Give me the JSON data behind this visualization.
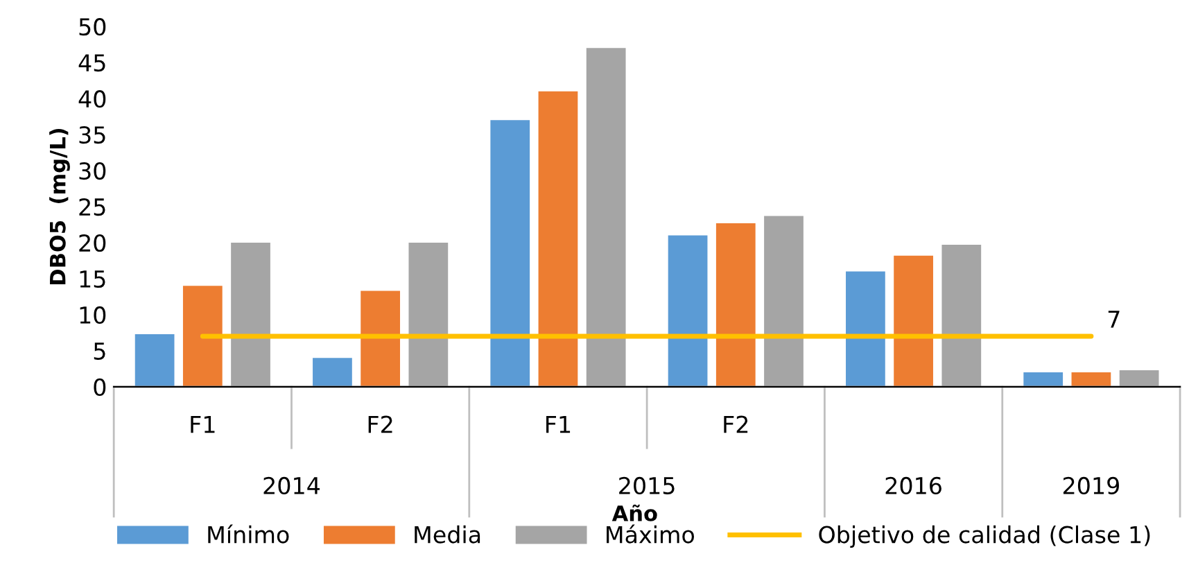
{
  "chart_data": {
    "type": "bar",
    "ylabel": "DBO5  (mg/L)",
    "xlabel": "Año",
    "categories": [
      "F1",
      "F2",
      "F1",
      "F2",
      null,
      null
    ],
    "annotations": [
      "2014",
      "2015",
      "2016",
      "2019"
    ],
    "series": [
      {
        "name": "Mínimo",
        "color": "#5b9bd5",
        "values": [
          7.3,
          4,
          37,
          21,
          16,
          2
        ]
      },
      {
        "name": "Media",
        "color": "#ed7d31",
        "values": [
          14,
          13.3,
          41,
          22.7,
          18.2,
          2
        ]
      },
      {
        "name": "Máximo",
        "color": "#a5a5a5",
        "values": [
          20,
          20,
          47,
          23.7,
          19.7,
          2.3
        ]
      },
      {
        "name": "Objetivo de calidad (Clase 1)",
        "type": "line",
        "color": "#ffc000",
        "values": [
          7,
          7,
          7,
          7,
          7,
          7
        ],
        "value_labels": [
          null,
          null,
          null,
          null,
          null,
          "7"
        ]
      }
    ],
    "ylim": [
      0,
      50
    ],
    "yticks": [
      0,
      5,
      10,
      15,
      20,
      25,
      30,
      35,
      40,
      45,
      50
    ],
    "grid": false,
    "legend": "bottom"
  }
}
